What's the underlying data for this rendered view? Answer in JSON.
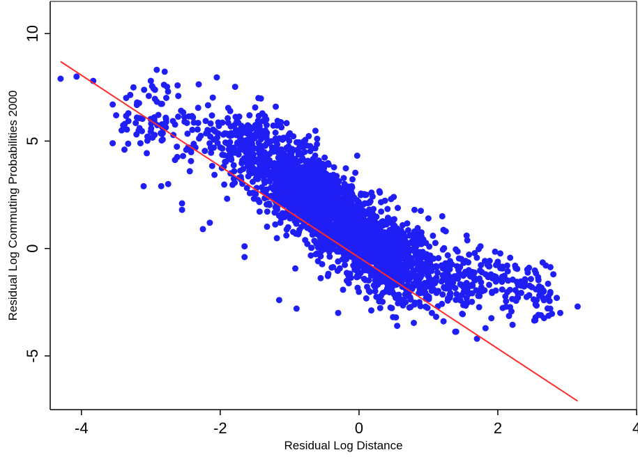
{
  "chart_data": {
    "type": "scatter",
    "xlabel": "Residual Log Distance",
    "ylabel": "Residual Log Commuting Probabilities 2000",
    "xlim": [
      -4.45,
      4.0
    ],
    "ylim": [
      -7.5,
      11.5
    ],
    "xticks": [
      -4,
      -2,
      0,
      2,
      4
    ],
    "yticks": [
      -5,
      0,
      5,
      10
    ],
    "grid": false,
    "legend": "none",
    "colors": {
      "points": "#1f1ff5",
      "fit_line": "#ff2a2a"
    },
    "series": [
      {
        "kind": "points",
        "note_points": [
          {
            "x": -4.3,
            "y": 7.9
          },
          {
            "x": -4.07,
            "y": 8.0
          },
          {
            "x": -3.83,
            "y": 7.8
          },
          {
            "x": -3.55,
            "y": 6.7
          },
          {
            "x": -3.5,
            "y": 6.2
          },
          {
            "x": -3.55,
            "y": 4.9
          },
          {
            "x": -3.42,
            "y": 5.5
          },
          {
            "x": -3.38,
            "y": 4.6
          },
          {
            "x": -3.25,
            "y": 7.5
          },
          {
            "x": -3.15,
            "y": 4.9
          },
          {
            "x": -3.0,
            "y": 7.8
          },
          {
            "x": -2.95,
            "y": 6.1
          },
          {
            "x": -2.85,
            "y": 2.9
          },
          {
            "x": -2.75,
            "y": 3.0
          },
          {
            "x": -2.55,
            "y": 2.1
          },
          {
            "x": -2.55,
            "y": 1.8
          },
          {
            "x": -2.25,
            "y": 0.9
          },
          {
            "x": -2.15,
            "y": 1.2
          },
          {
            "x": -1.65,
            "y": 0.1
          },
          {
            "x": -1.65,
            "y": -0.4
          },
          {
            "x": -1.45,
            "y": 7.0
          },
          {
            "x": -1.2,
            "y": 6.6
          },
          {
            "x": -1.15,
            "y": -2.4
          },
          {
            "x": -0.9,
            "y": -2.8
          },
          {
            "x": -0.3,
            "y": -3.0
          },
          {
            "x": 0.3,
            "y": 2.6
          },
          {
            "x": 0.5,
            "y": 2.4
          },
          {
            "x": 0.8,
            "y": 1.8
          },
          {
            "x": 1.0,
            "y": 1.4
          },
          {
            "x": 1.2,
            "y": 1.5
          },
          {
            "x": 1.25,
            "y": 0.8
          },
          {
            "x": 1.55,
            "y": 0.6
          },
          {
            "x": 1.75,
            "y": 0.1
          },
          {
            "x": 2.1,
            "y": -1.4
          },
          {
            "x": 2.25,
            "y": -0.8
          },
          {
            "x": 2.45,
            "y": -0.9
          },
          {
            "x": 2.55,
            "y": -1.9
          },
          {
            "x": 2.65,
            "y": -2.3
          },
          {
            "x": 2.8,
            "y": -1.2
          },
          {
            "x": 2.85,
            "y": -2.3
          },
          {
            "x": 2.9,
            "y": -3.0
          },
          {
            "x": 3.15,
            "y": -2.7
          },
          {
            "x": 1.7,
            "y": -4.2
          },
          {
            "x": 1.05,
            "y": -3.0
          },
          {
            "x": 0.55,
            "y": -3.6
          }
        ]
      },
      {
        "kind": "fit_line",
        "x": [
          -4.3,
          3.15
        ],
        "y": [
          8.7,
          -7.1
        ]
      }
    ]
  }
}
